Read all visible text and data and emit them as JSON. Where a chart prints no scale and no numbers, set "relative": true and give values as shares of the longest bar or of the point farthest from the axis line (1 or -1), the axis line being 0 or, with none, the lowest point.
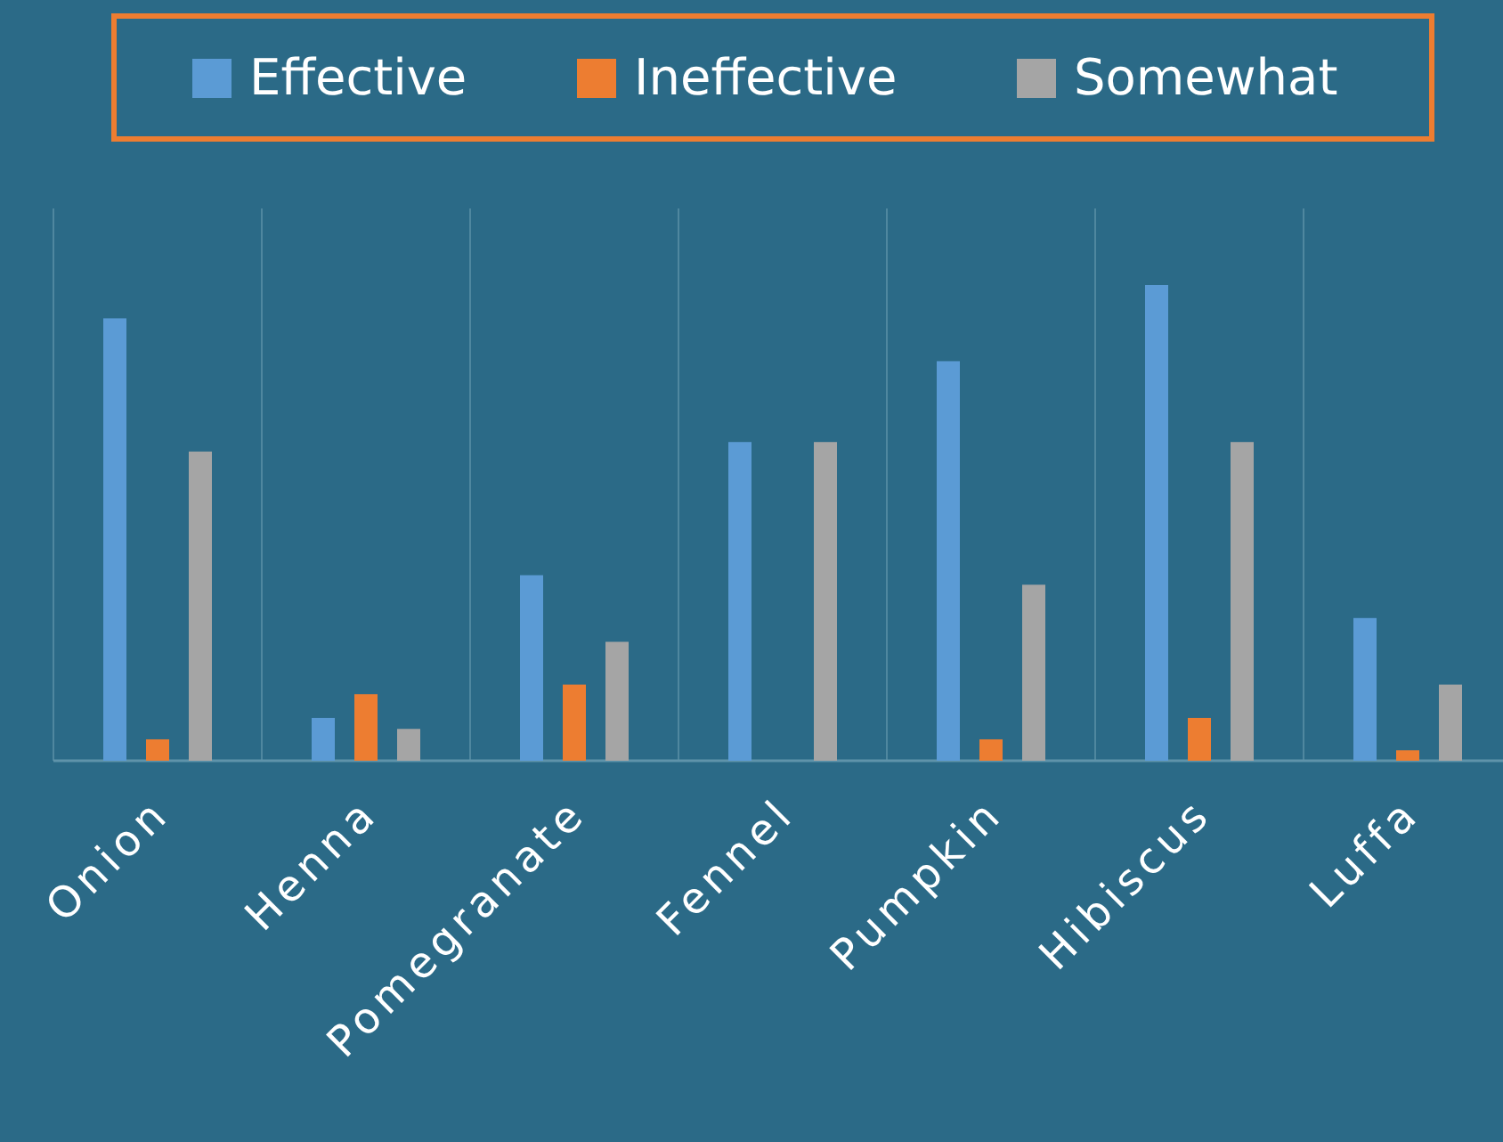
{
  "chart_data": {
    "type": "bar",
    "relative": true,
    "categories": [
      "Onion",
      "Henna",
      "Pomegranate",
      "Fennel",
      "Pumpkin",
      "Hibiscus",
      "Luffa"
    ],
    "series": [
      {
        "name": "Effective",
        "color": "#5b9bd5",
        "values": [
          0.93,
          0.09,
          0.39,
          0.67,
          0.84,
          1,
          0.3
        ]
      },
      {
        "name": "Ineffective",
        "color": "#ed7d31",
        "values": [
          0.045,
          0.14,
          0.16,
          0,
          0.045,
          0.09,
          0.022
        ]
      },
      {
        "name": "Somewhat",
        "color": "#a5a5a5",
        "values": [
          0.65,
          0.067,
          0.25,
          0.67,
          0.37,
          0.67,
          0.16
        ]
      }
    ],
    "grid": true,
    "legend": "top"
  }
}
